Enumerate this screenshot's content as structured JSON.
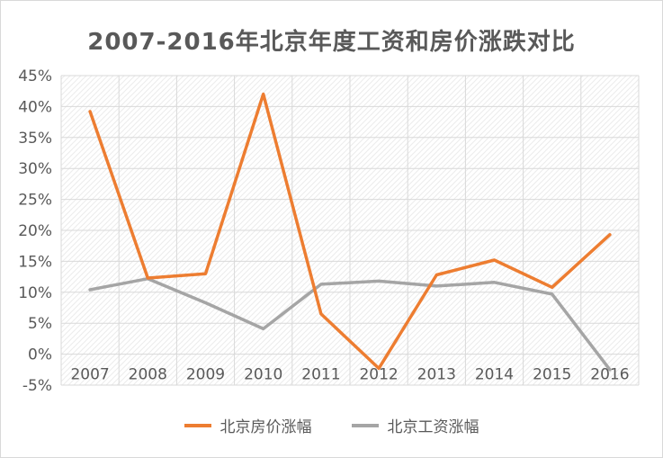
{
  "chart_data": {
    "type": "line",
    "title": "2007-2016年北京年度工资和房价涨跌对比",
    "xlabel": "",
    "ylabel": "",
    "categories": [
      "2007",
      "2008",
      "2009",
      "2010",
      "2011",
      "2012",
      "2013",
      "2014",
      "2015",
      "2016"
    ],
    "ylim": [
      -5,
      45
    ],
    "yticks": [
      45,
      40,
      35,
      30,
      25,
      20,
      15,
      10,
      5,
      0,
      -5
    ],
    "ytick_labels": [
      "45%",
      "40%",
      "35%",
      "30%",
      "25%",
      "20%",
      "15%",
      "10%",
      "5%",
      "0%",
      "-5%"
    ],
    "grid": true,
    "legend_position": "bottom",
    "series": [
      {
        "name": "北京房价涨幅",
        "color": "#ED7D31",
        "values": [
          39.2,
          12.3,
          13.0,
          42.0,
          6.5,
          -2.3,
          12.8,
          15.2,
          10.8,
          19.3
        ]
      },
      {
        "name": "北京工资涨幅",
        "color": "#A5A5A5",
        "values": [
          10.4,
          12.2,
          8.3,
          4.1,
          11.3,
          11.8,
          11.0,
          11.6,
          9.7,
          -2.5
        ]
      }
    ]
  }
}
